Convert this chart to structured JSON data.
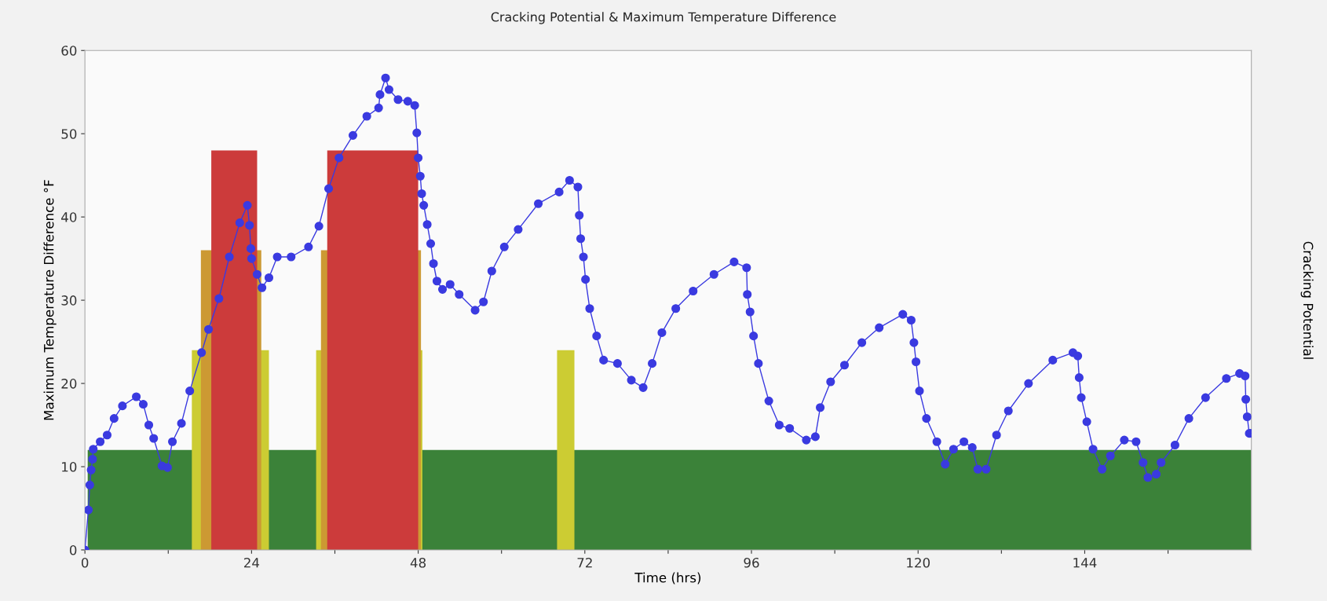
{
  "chart_data": {
    "type": "line",
    "title": "Cracking Potential & Maximum Temperature Difference",
    "xlabel": "Time (hrs)",
    "ylabel": "Maximum Temperature Difference °F",
    "y2label": "Cracking Potential",
    "xlim": [
      0,
      168
    ],
    "ylim": [
      0,
      60
    ],
    "xticks": [
      0,
      {
        "value": 12,
        "label": null
      },
      24,
      {
        "value": 36,
        "label": null
      },
      48,
      {
        "value": 60,
        "label": null
      },
      72,
      {
        "value": 84,
        "label": null
      },
      96,
      {
        "value": 108,
        "label": null
      },
      120,
      {
        "value": 132,
        "label": null
      },
      144,
      {
        "value": 156,
        "label": null
      }
    ],
    "yticks": [
      0,
      10,
      20,
      30,
      40,
      50,
      60
    ],
    "grid": false,
    "series": [
      {
        "type": "area",
        "color": "#3b8239",
        "x": [
          0.4,
          168
        ],
        "values": [
          12,
          12
        ]
      },
      {
        "type": "area",
        "color": "#cccc33",
        "x": [
          15.4,
          26.5
        ],
        "values": [
          24,
          24
        ]
      },
      {
        "type": "area",
        "color": "#cccc33",
        "x": [
          33.3,
          48.6
        ],
        "values": [
          24,
          24
        ]
      },
      {
        "type": "area",
        "color": "#cccc33",
        "x": [
          68.0,
          70.5
        ],
        "values": [
          24,
          24
        ]
      },
      {
        "type": "area",
        "color": "#cc9933",
        "x": [
          16.7,
          25.4
        ],
        "values": [
          36,
          36
        ]
      },
      {
        "type": "area",
        "color": "#cc9933",
        "x": [
          34.0,
          48.4
        ],
        "values": [
          36,
          36
        ]
      },
      {
        "type": "area",
        "color": "#cc3b3b",
        "x": [
          18.2,
          24.8
        ],
        "values": [
          48,
          48
        ]
      },
      {
        "type": "area",
        "color": "#cc3b3b",
        "x": [
          34.9,
          48.0
        ],
        "values": [
          48,
          48
        ]
      },
      {
        "color": "#3a3ae0",
        "marker": "circle",
        "x": [
          0,
          0.5,
          0.7,
          0.9,
          1.1,
          1.2,
          2.2,
          3.2,
          4.2,
          5.4,
          7.4,
          8.4,
          9.2,
          9.9,
          11.1,
          11.9,
          12.6,
          13.9,
          15.1,
          16.8,
          17.8,
          19.3,
          20.8,
          22.3,
          23.4,
          23.7,
          23.9,
          24.0,
          24.8,
          25.5,
          26.5,
          27.7,
          29.7,
          32.2,
          33.7,
          35.1,
          36.6,
          38.6,
          40.6,
          42.3,
          42.5,
          43.3,
          43.8,
          45.1,
          46.5,
          47.5,
          47.8,
          48.0,
          48.3,
          48.5,
          48.8,
          49.3,
          49.8,
          50.2,
          50.7,
          51.5,
          52.6,
          53.9,
          56.2,
          57.4,
          58.6,
          60.4,
          62.4,
          65.3,
          68.3,
          69.8,
          71.0,
          71.2,
          71.4,
          71.8,
          72.1,
          72.7,
          73.7,
          74.7,
          76.7,
          78.7,
          80.4,
          81.7,
          83.1,
          85.1,
          87.6,
          90.6,
          93.5,
          95.3,
          95.4,
          95.8,
          96.3,
          97.0,
          98.5,
          100.0,
          101.5,
          103.9,
          105.2,
          105.9,
          107.4,
          109.4,
          111.9,
          114.4,
          117.8,
          119.0,
          119.4,
          119.7,
          120.2,
          121.2,
          122.7,
          123.9,
          125.1,
          126.6,
          127.8,
          128.6,
          129.8,
          131.3,
          133.0,
          135.9,
          139.4,
          142.3,
          143.0,
          143.2,
          143.5,
          144.3,
          145.2,
          146.5,
          147.7,
          149.7,
          151.4,
          152.4,
          153.1,
          154.3,
          155.0,
          157.0,
          159.0,
          161.4,
          164.4,
          166.3,
          167.1,
          167.2,
          167.4,
          167.7,
          168.0
        ],
        "values": [
          0,
          4.8,
          7.8,
          9.6,
          10.9,
          12.1,
          13.0,
          13.8,
          15.8,
          17.3,
          18.4,
          17.5,
          15.0,
          13.4,
          10.1,
          9.9,
          13.0,
          15.2,
          19.1,
          23.7,
          26.5,
          30.2,
          35.2,
          39.3,
          41.4,
          39.0,
          36.2,
          35.0,
          33.1,
          31.5,
          32.7,
          35.2,
          35.2,
          36.4,
          38.9,
          43.4,
          47.1,
          49.8,
          52.1,
          53.1,
          54.7,
          56.7,
          55.3,
          54.1,
          53.9,
          53.4,
          50.1,
          47.1,
          44.9,
          42.8,
          41.4,
          39.1,
          36.8,
          34.4,
          32.3,
          31.3,
          31.9,
          30.7,
          28.8,
          29.8,
          33.5,
          36.4,
          38.5,
          41.6,
          43.0,
          44.4,
          43.6,
          40.2,
          37.4,
          35.2,
          32.5,
          29.0,
          25.7,
          22.8,
          22.4,
          20.4,
          19.5,
          22.4,
          26.1,
          29.0,
          31.1,
          33.1,
          34.6,
          33.9,
          30.7,
          28.6,
          25.7,
          22.4,
          17.9,
          15.0,
          14.6,
          13.2,
          13.6,
          17.1,
          20.2,
          22.2,
          24.9,
          26.7,
          28.3,
          27.6,
          24.9,
          22.6,
          19.1,
          15.8,
          13.0,
          10.3,
          12.1,
          13.0,
          12.3,
          9.7,
          9.7,
          13.8,
          16.7,
          20.0,
          22.8,
          23.7,
          23.3,
          20.7,
          18.3,
          15.4,
          12.1,
          9.7,
          11.3,
          13.2,
          13.0,
          10.5,
          8.7,
          9.1,
          10.5,
          12.6,
          15.8,
          18.3,
          20.6,
          21.2,
          20.9,
          18.1,
          16.0,
          14.0,
          14.0
        ]
      }
    ]
  }
}
